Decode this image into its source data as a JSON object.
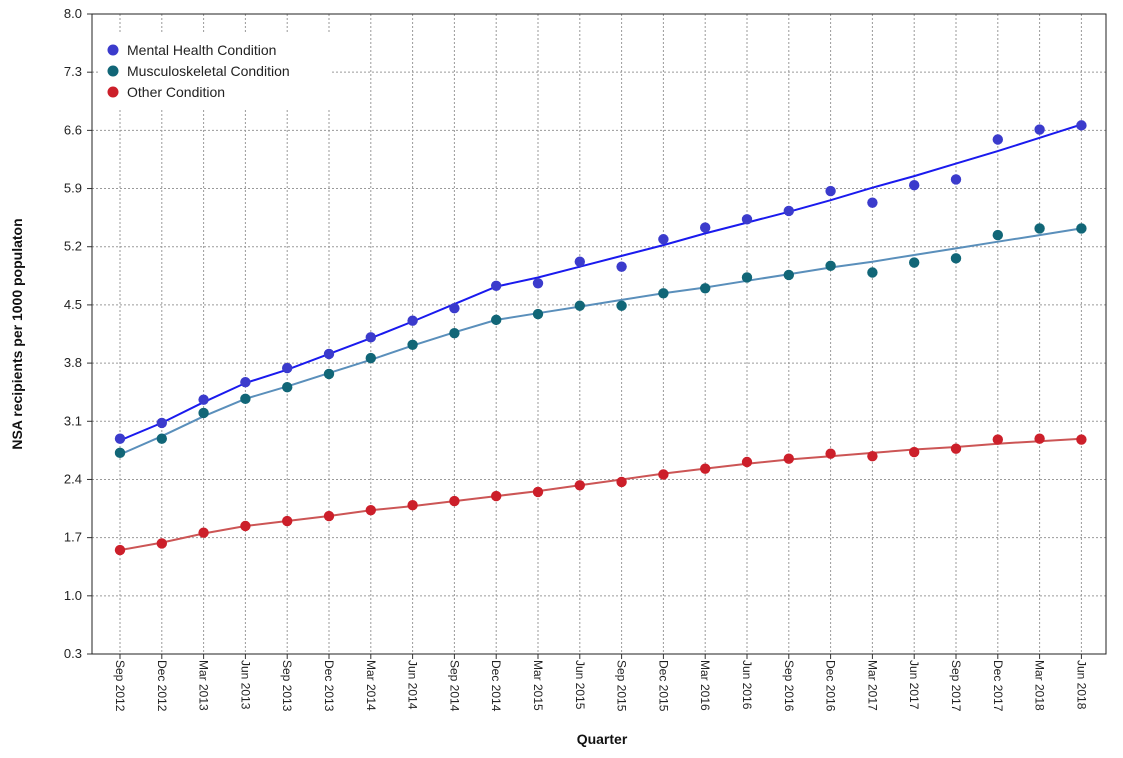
{
  "chart_data": {
    "type": "line",
    "xlabel": "Quarter",
    "ylabel": "NSA recipients per 1000 populaton",
    "ylim": [
      0.3,
      8.0
    ],
    "yticks": [
      "0.3",
      "1.0",
      "1.7",
      "2.4",
      "3.1",
      "3.8",
      "4.5",
      "5.2",
      "5.9",
      "6.6",
      "7.3",
      "8.0"
    ],
    "grid": true,
    "legend_position": "top-left",
    "categories": [
      "Sep 2012",
      "Dec 2012",
      "Mar 2013",
      "Jun 2013",
      "Sep 2013",
      "Dec 2013",
      "Mar 2014",
      "Jun 2014",
      "Sep 2014",
      "Dec 2014",
      "Mar 2015",
      "Jun 2015",
      "Sep 2015",
      "Dec 2015",
      "Mar 2016",
      "Jun 2016",
      "Sep 2016",
      "Dec 2016",
      "Mar 2017",
      "Jun 2017",
      "Sep 2017",
      "Dec 2017",
      "Mar 2018",
      "Jun 2018"
    ],
    "series": [
      {
        "name": "Mental Health Condition",
        "marker_color": "#3b3bcc",
        "line_color": "#1a1aee",
        "values": [
          2.89,
          3.08,
          3.36,
          3.57,
          3.74,
          3.91,
          4.11,
          4.31,
          4.46,
          4.73,
          4.76,
          5.02,
          4.96,
          5.29,
          5.43,
          5.53,
          5.63,
          5.87,
          5.73,
          5.94,
          6.01,
          6.49,
          6.61,
          6.66
        ],
        "fit": [
          2.87,
          3.08,
          3.33,
          3.56,
          3.72,
          3.91,
          4.1,
          4.3,
          4.51,
          4.72,
          4.83,
          4.96,
          5.09,
          5.22,
          5.36,
          5.49,
          5.62,
          5.76,
          5.91,
          6.05,
          6.2,
          6.35,
          6.51,
          6.67
        ]
      },
      {
        "name": "Musculoskeletal Condition",
        "marker_color": "#116677",
        "line_color": "#5a8fbb",
        "values": [
          2.72,
          2.89,
          3.2,
          3.37,
          3.51,
          3.67,
          3.86,
          4.02,
          4.16,
          4.32,
          4.39,
          4.49,
          4.49,
          4.64,
          4.7,
          4.83,
          4.86,
          4.97,
          4.89,
          5.01,
          5.06,
          5.34,
          5.42,
          5.42
        ],
        "fit": [
          2.7,
          2.92,
          3.16,
          3.37,
          3.52,
          3.68,
          3.84,
          4.01,
          4.17,
          4.32,
          4.4,
          4.48,
          4.56,
          4.64,
          4.71,
          4.79,
          4.87,
          4.95,
          5.02,
          5.1,
          5.18,
          5.26,
          5.34,
          5.42
        ]
      },
      {
        "name": "Other Condition",
        "marker_color": "#cc1f2a",
        "line_color": "#cc5555",
        "values": [
          1.55,
          1.63,
          1.76,
          1.84,
          1.9,
          1.96,
          2.03,
          2.09,
          2.14,
          2.2,
          2.25,
          2.33,
          2.37,
          2.46,
          2.53,
          2.61,
          2.65,
          2.71,
          2.68,
          2.73,
          2.77,
          2.88,
          2.89,
          2.88
        ],
        "fit": [
          1.55,
          1.64,
          1.75,
          1.84,
          1.9,
          1.96,
          2.03,
          2.08,
          2.14,
          2.2,
          2.26,
          2.33,
          2.4,
          2.47,
          2.53,
          2.59,
          2.64,
          2.68,
          2.72,
          2.76,
          2.79,
          2.83,
          2.86,
          2.89
        ]
      }
    ]
  }
}
